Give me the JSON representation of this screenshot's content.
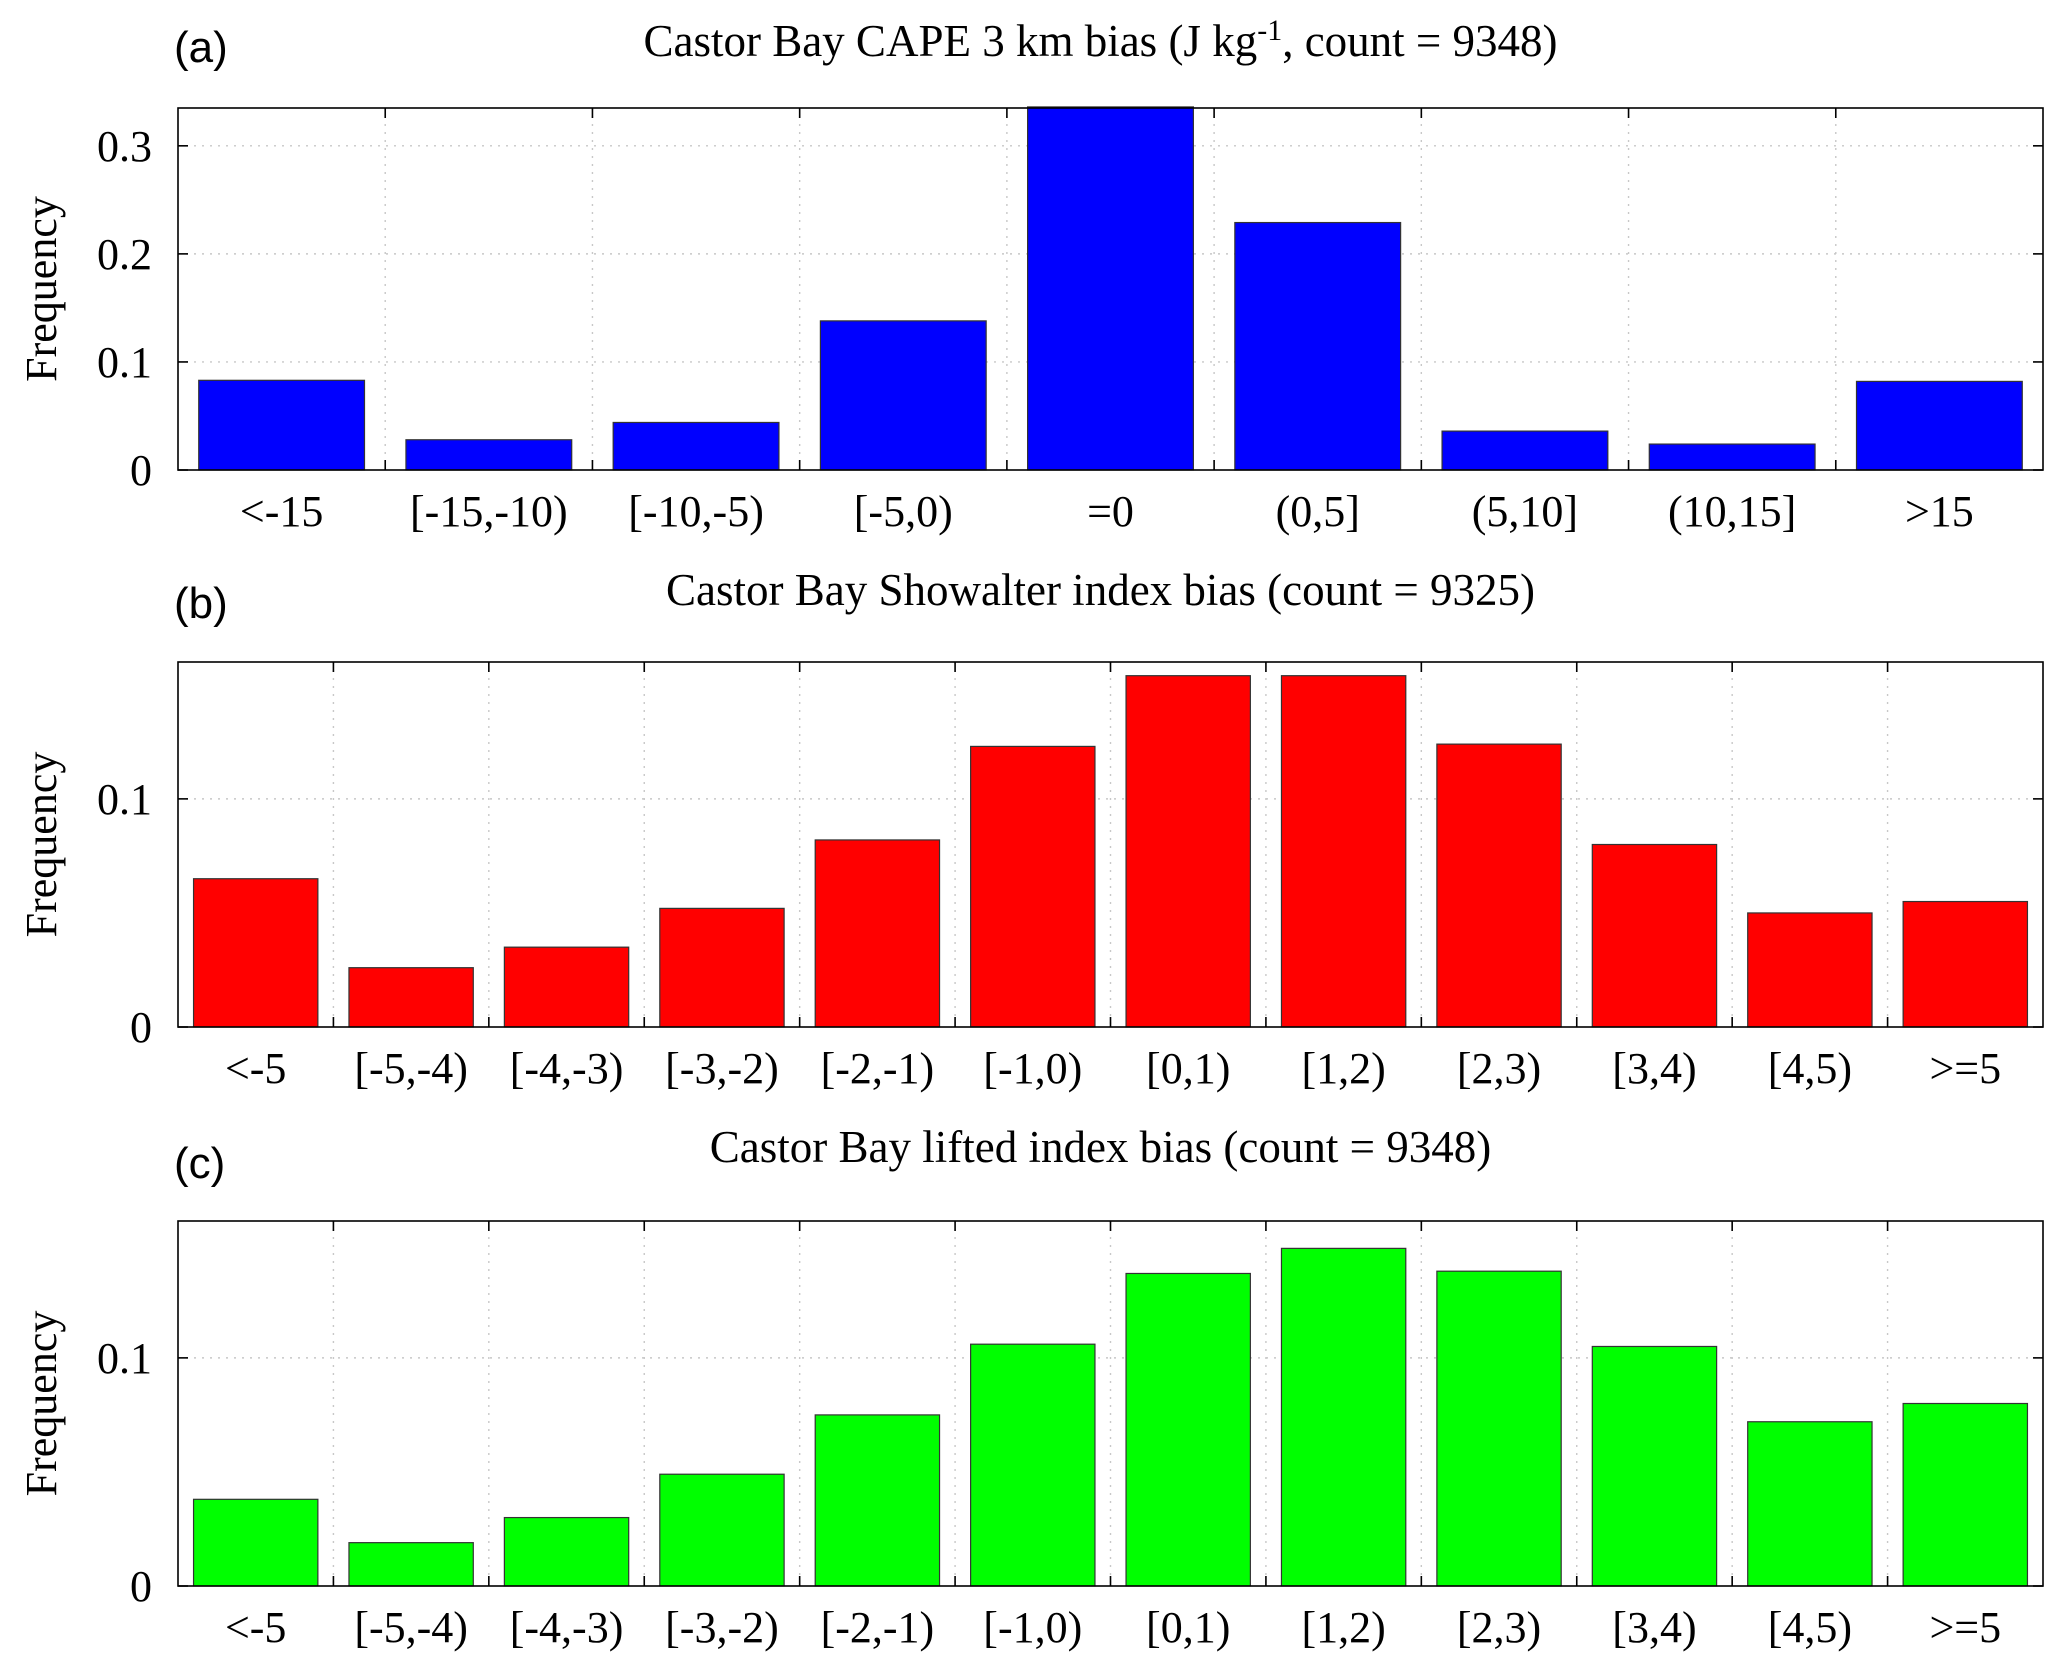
{
  "chart_data": [
    {
      "type": "bar",
      "panel_label": "(a)",
      "title": "Castor Bay CAPE 3 km bias (J kg",
      "title_superscript": "-1",
      "title_suffix": ", count = 9348)",
      "xlabel": "",
      "ylabel": "Frequency",
      "ylim": [
        0,
        0.335
      ],
      "yticks": [
        0,
        0.1,
        0.2,
        0.3
      ],
      "ytick_labels": [
        "0",
        "0.1",
        "0.2",
        "0.3"
      ],
      "grid": true,
      "color": "#0000ff",
      "categories": [
        "<-15",
        "[-15,-10)",
        "[-10,-5)",
        "[-5,0)",
        "=0",
        "(0,5]",
        "(5,10]",
        "(10,15]",
        ">15"
      ],
      "values": [
        0.083,
        0.028,
        0.044,
        0.138,
        0.336,
        0.229,
        0.036,
        0.024,
        0.082
      ]
    },
    {
      "type": "bar",
      "panel_label": "(b)",
      "title": "Castor Bay Showalter index bias (count = 9325)",
      "xlabel": "",
      "ylabel": "Frequency",
      "ylim": [
        0,
        0.16
      ],
      "yticks": [
        0,
        0.1
      ],
      "ytick_labels": [
        "0",
        "0.1"
      ],
      "grid": true,
      "color": "#ff0000",
      "categories": [
        "<-5",
        "[-5,-4)",
        "[-4,-3)",
        "[-3,-2)",
        "[-2,-1)",
        "[-1,0)",
        "[0,1)",
        "[1,2)",
        "[2,3)",
        "[3,4)",
        "[4,5)",
        ">=5"
      ],
      "values": [
        0.065,
        0.026,
        0.035,
        0.052,
        0.082,
        0.123,
        0.154,
        0.154,
        0.124,
        0.08,
        0.05,
        0.055
      ]
    },
    {
      "type": "bar",
      "panel_label": "(c)",
      "title": "Castor Bay lifted index bias (count = 9348)",
      "xlabel": "",
      "ylabel": "Frequency",
      "ylim": [
        0,
        0.16
      ],
      "yticks": [
        0,
        0.1
      ],
      "ytick_labels": [
        "0",
        "0.1"
      ],
      "grid": true,
      "color": "#00ff00",
      "categories": [
        "<-5",
        "[-5,-4)",
        "[-4,-3)",
        "[-3,-2)",
        "[-2,-1)",
        "[-1,0)",
        "[0,1)",
        "[1,2)",
        "[2,3)",
        "[3,4)",
        "[4,5)",
        ">=5"
      ],
      "values": [
        0.038,
        0.019,
        0.03,
        0.049,
        0.075,
        0.106,
        0.137,
        0.148,
        0.138,
        0.105,
        0.072,
        0.08
      ]
    }
  ]
}
